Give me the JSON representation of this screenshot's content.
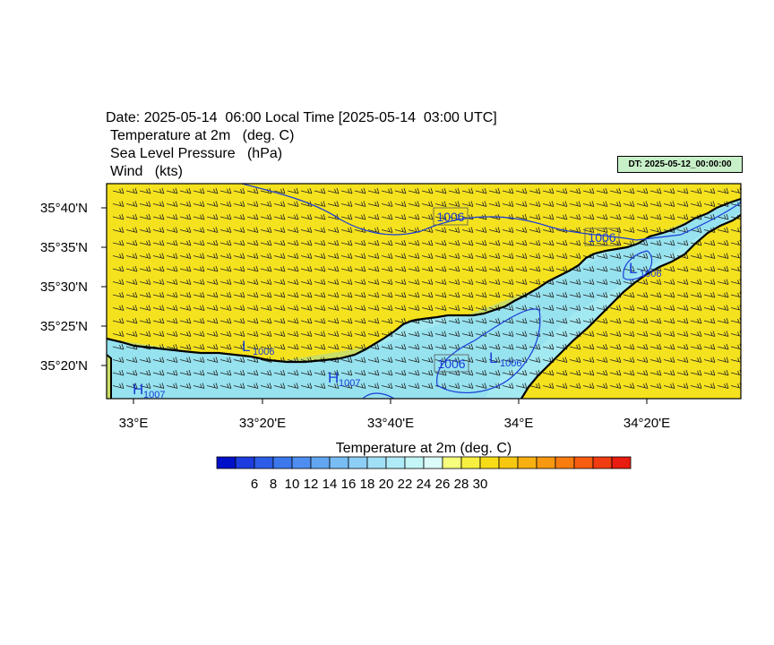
{
  "header": {
    "date_line": "Date: 2025-05-14  06:00 Local Time [2025-05-14  03:00 UTC]",
    "var1": "Temperature at 2m   (deg. C)",
    "var2": "Sea Level Pressure   (hPa)",
    "var3": "Wind   (kts)"
  },
  "dt_badge": "DT: 2025-05-12_00:00:00",
  "map": {
    "lat_labels": [
      "35°40'N",
      "35°35'N",
      "35°30'N",
      "35°25'N",
      "35°20'N"
    ],
    "lon_labels": [
      "33°E",
      "33°20'E",
      "33°40'E",
      "34°E",
      "34°20'E"
    ],
    "isobar_labels": [
      "1006",
      "1006",
      "1006"
    ],
    "pressure_centers": [
      {
        "type": "L",
        "value": "1006"
      },
      {
        "type": "L",
        "value": "1006"
      },
      {
        "type": "L",
        "value": "1006"
      },
      {
        "type": "H",
        "value": "1007"
      },
      {
        "type": "H",
        "value": "1007"
      }
    ],
    "colors": {
      "land": "#f5e21e",
      "sea": "#a3e9f2",
      "sea_mid": "#7fd6ec",
      "coast": "#000000",
      "isobar": "#1a3cd6"
    }
  },
  "colorbar": {
    "title": "Temperature at 2m  (deg. C)",
    "tick_labels": [
      "6",
      "8",
      "10",
      "12",
      "14",
      "16",
      "18",
      "20",
      "22",
      "24",
      "26",
      "28",
      "30"
    ],
    "colors": [
      "#0010c8",
      "#1c3ce0",
      "#2c5ce8",
      "#3c78ec",
      "#4f8ef0",
      "#62a6f2",
      "#78bcf4",
      "#8ccef6",
      "#a0e0f6",
      "#b0ecf8",
      "#c4f6f8",
      "#dcfcfa",
      "#f6ff7c",
      "#f8f040",
      "#f8dc18",
      "#f8c810",
      "#f8b010",
      "#f89810",
      "#f87c10",
      "#f85c10",
      "#f03c10",
      "#e81c10"
    ]
  }
}
